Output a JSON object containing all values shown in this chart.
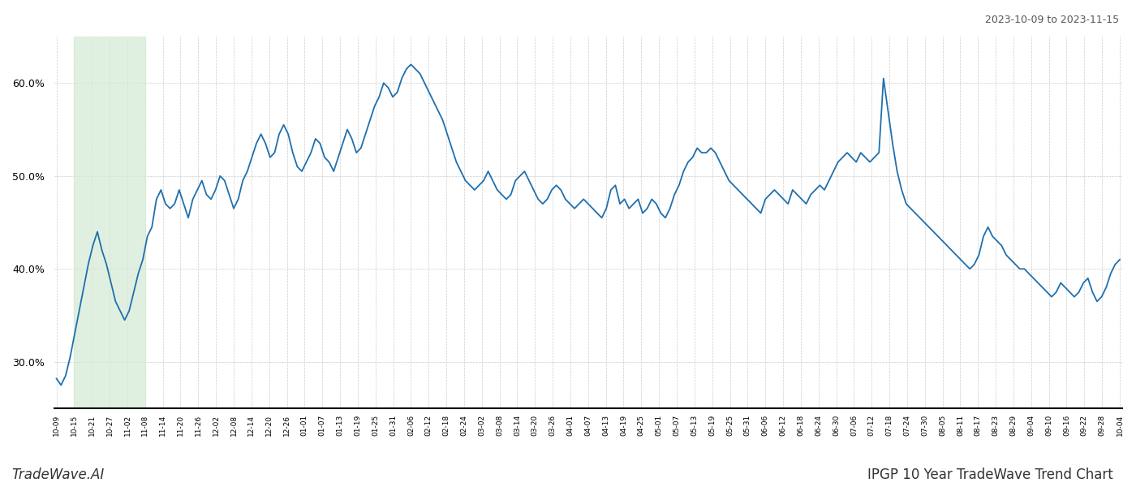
{
  "title_top_right": "2023-10-09 to 2023-11-15",
  "title_bottom_left": "TradeWave.AI",
  "title_bottom_right": "IPGP 10 Year TradeWave Trend Chart",
  "line_color": "#1f6fad",
  "line_width": 1.3,
  "highlight_color": "#d4ead4",
  "highlight_alpha": 0.7,
  "background_color": "#ffffff",
  "grid_color": "#cccccc",
  "ylim": [
    25.0,
    65.0
  ],
  "yticks": [
    30.0,
    40.0,
    50.0,
    60.0
  ],
  "x_labels": [
    "10-09",
    "10-15",
    "10-21",
    "10-27",
    "11-02",
    "11-08",
    "11-14",
    "11-20",
    "11-26",
    "12-02",
    "12-08",
    "12-14",
    "12-20",
    "12-26",
    "01-01",
    "01-07",
    "01-13",
    "01-19",
    "01-25",
    "01-31",
    "02-06",
    "02-12",
    "02-18",
    "02-24",
    "03-02",
    "03-08",
    "03-14",
    "03-20",
    "03-26",
    "04-01",
    "04-07",
    "04-13",
    "04-19",
    "04-25",
    "05-01",
    "05-07",
    "05-13",
    "05-19",
    "05-25",
    "05-31",
    "06-06",
    "06-12",
    "06-18",
    "06-24",
    "06-30",
    "07-06",
    "07-12",
    "07-18",
    "07-24",
    "07-30",
    "08-05",
    "08-11",
    "08-17",
    "08-23",
    "08-29",
    "09-04",
    "09-10",
    "09-16",
    "09-22",
    "09-28",
    "10-04"
  ],
  "highlight_x_start_label": "10-15",
  "highlight_x_end_label": "11-08",
  "y_values": [
    28.2,
    27.5,
    28.5,
    30.5,
    33.0,
    35.5,
    38.0,
    40.5,
    42.5,
    44.0,
    42.0,
    40.5,
    38.5,
    36.5,
    35.5,
    34.5,
    35.5,
    37.5,
    39.5,
    41.0,
    43.5,
    44.5,
    47.5,
    48.5,
    47.0,
    46.5,
    47.0,
    48.5,
    47.0,
    45.5,
    47.5,
    48.5,
    49.5,
    48.0,
    47.5,
    48.5,
    50.0,
    49.5,
    48.0,
    46.5,
    47.5,
    49.5,
    50.5,
    52.0,
    53.5,
    54.5,
    53.5,
    52.0,
    52.5,
    54.5,
    55.5,
    54.5,
    52.5,
    51.0,
    50.5,
    51.5,
    52.5,
    54.0,
    53.5,
    52.0,
    51.5,
    50.5,
    52.0,
    53.5,
    55.0,
    54.0,
    52.5,
    53.0,
    54.5,
    56.0,
    57.5,
    58.5,
    60.0,
    59.5,
    58.5,
    59.0,
    60.5,
    61.5,
    62.0,
    61.5,
    61.0,
    60.0,
    59.0,
    58.0,
    57.0,
    56.0,
    54.5,
    53.0,
    51.5,
    50.5,
    49.5,
    49.0,
    48.5,
    49.0,
    49.5,
    50.5,
    49.5,
    48.5,
    48.0,
    47.5,
    48.0,
    49.5,
    50.0,
    50.5,
    49.5,
    48.5,
    47.5,
    47.0,
    47.5,
    48.5,
    49.0,
    48.5,
    47.5,
    47.0,
    46.5,
    47.0,
    47.5,
    47.0,
    46.5,
    46.0,
    45.5,
    46.5,
    48.5,
    49.0,
    47.0,
    47.5,
    46.5,
    47.0,
    47.5,
    46.0,
    46.5,
    47.5,
    47.0,
    46.0,
    45.5,
    46.5,
    48.0,
    49.0,
    50.5,
    51.5,
    52.0,
    53.0,
    52.5,
    52.5,
    53.0,
    52.5,
    51.5,
    50.5,
    49.5,
    49.0,
    48.5,
    48.0,
    47.5,
    47.0,
    46.5,
    46.0,
    47.5,
    48.0,
    48.5,
    48.0,
    47.5,
    47.0,
    48.5,
    48.0,
    47.5,
    47.0,
    48.0,
    48.5,
    49.0,
    48.5,
    49.5,
    50.5,
    51.5,
    52.0,
    52.5,
    52.0,
    51.5,
    52.5,
    52.0,
    51.5,
    52.0,
    52.5,
    60.5,
    57.0,
    53.5,
    50.5,
    48.5,
    47.0,
    46.5,
    46.0,
    45.5,
    45.0,
    44.5,
    44.0,
    43.5,
    43.0,
    42.5,
    42.0,
    41.5,
    41.0,
    40.5,
    40.0,
    40.5,
    41.5,
    43.5,
    44.5,
    43.5,
    43.0,
    42.5,
    41.5,
    41.0,
    40.5,
    40.0,
    40.0,
    39.5,
    39.0,
    38.5,
    38.0,
    37.5,
    37.0,
    37.5,
    38.5,
    38.0,
    37.5,
    37.0,
    37.5,
    38.5,
    39.0,
    37.5,
    36.5,
    37.0,
    38.0,
    39.5,
    40.5,
    41.0
  ]
}
